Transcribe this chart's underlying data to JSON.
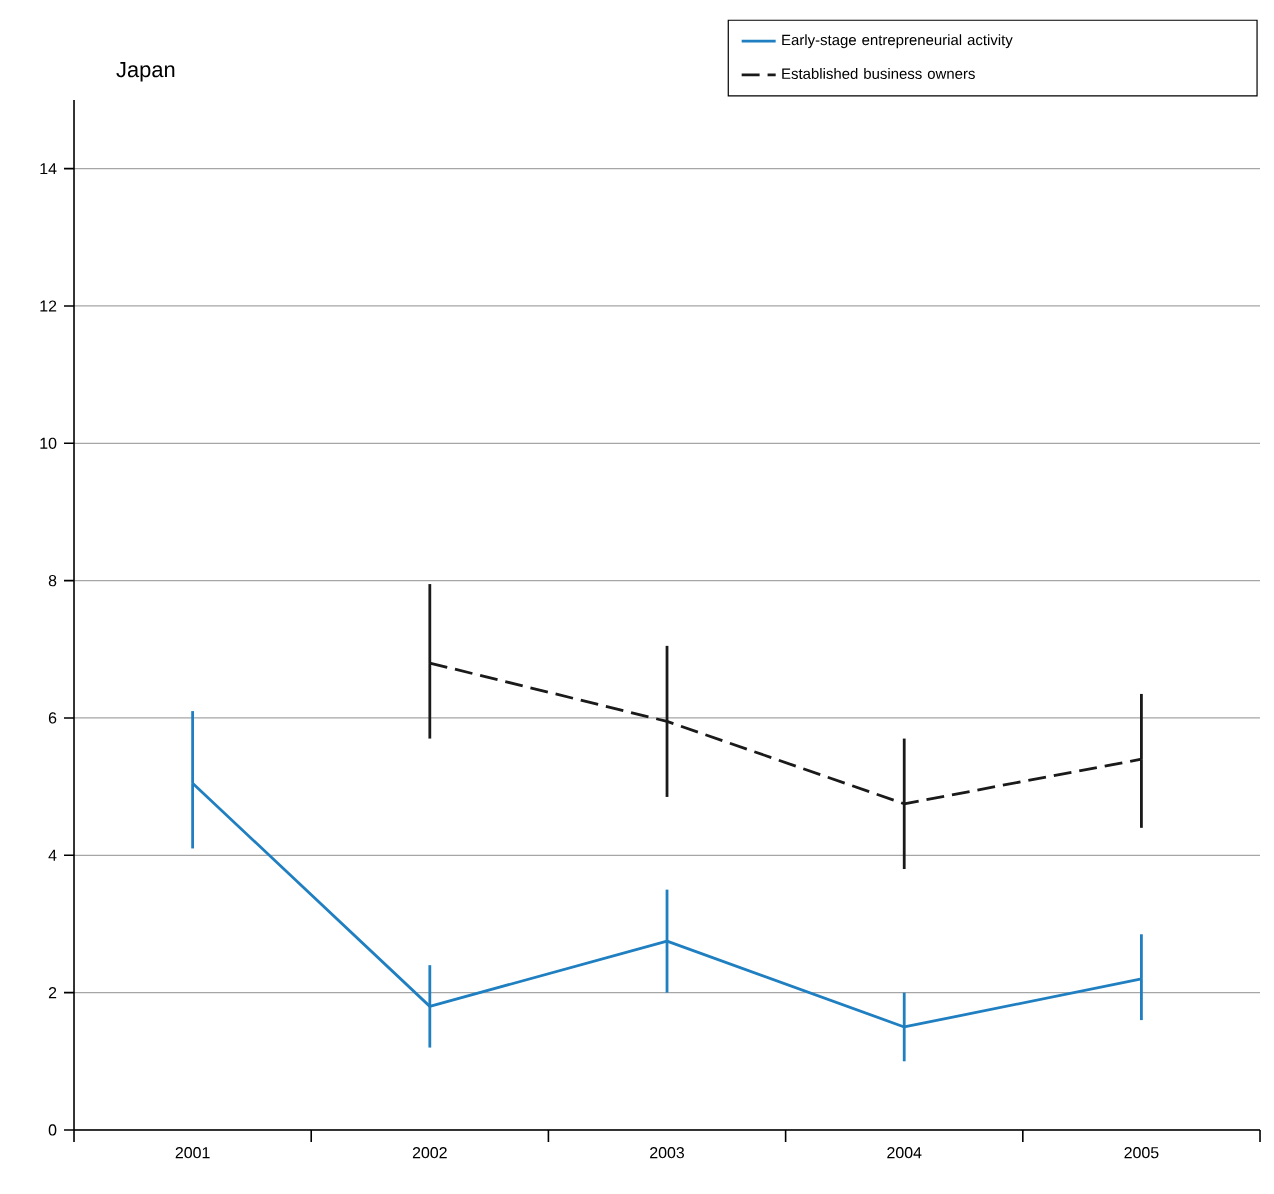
{
  "chart_data": {
    "type": "line",
    "title": "Japan",
    "categories": [
      "2001",
      "2002",
      "2003",
      "2004",
      "2005"
    ],
    "series": [
      {
        "name": "Early-stage entrepreneurial activity",
        "color": "#1f7fc0",
        "line_style": "solid",
        "values": [
          5.05,
          1.8,
          2.75,
          1.5,
          2.2
        ],
        "errors": [
          [
            4.1,
            6.1
          ],
          [
            1.2,
            2.4
          ],
          [
            2.0,
            3.5
          ],
          [
            1.0,
            2.0
          ],
          [
            1.6,
            2.85
          ]
        ]
      },
      {
        "name": "Established business owners",
        "color": "#1a1a1a",
        "line_style": "dashed",
        "values": [
          null,
          6.8,
          5.95,
          4.75,
          5.4
        ],
        "errors": [
          null,
          [
            5.7,
            7.95
          ],
          [
            4.85,
            7.05
          ],
          [
            3.8,
            5.7
          ],
          [
            4.4,
            6.35
          ]
        ]
      }
    ],
    "ylim": [
      0,
      15
    ],
    "yticks": [
      0,
      2,
      4,
      6,
      8,
      10,
      12,
      14
    ],
    "grid": "y",
    "legend": "top right"
  }
}
